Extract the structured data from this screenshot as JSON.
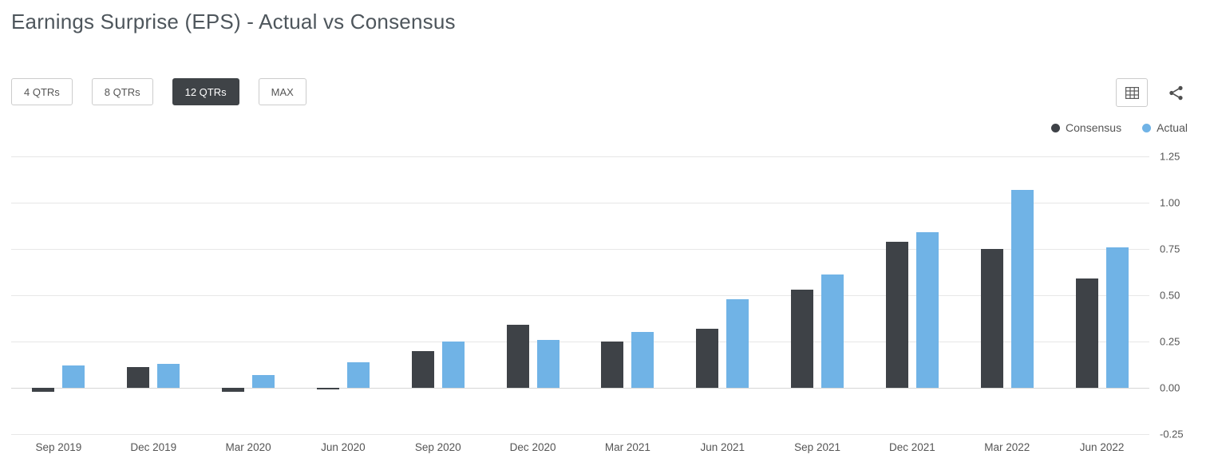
{
  "header": {
    "title": "Earnings Surprise (EPS) - Actual vs Consensus"
  },
  "toolbar": {
    "buttons": [
      {
        "label": "4 QTRs",
        "active": false
      },
      {
        "label": "8 QTRs",
        "active": false
      },
      {
        "label": "12 QTRs",
        "active": true
      },
      {
        "label": "MAX",
        "active": false
      }
    ],
    "icons": [
      {
        "name": "table-icon"
      },
      {
        "name": "share-icon"
      }
    ]
  },
  "colors": {
    "consensus": "#3e4247",
    "actual": "#70b3e6",
    "active_button_bg": "#3f4347",
    "grid": "#e7e7e7"
  },
  "chart_data": {
    "type": "bar",
    "title": "Earnings Surprise (EPS) - Actual vs Consensus",
    "categories": [
      "Sep 2019",
      "Dec 2019",
      "Mar 2020",
      "Jun 2020",
      "Sep 2020",
      "Dec 2020",
      "Mar 2021",
      "Jun 2021",
      "Sep 2021",
      "Dec 2021",
      "Mar 2022",
      "Jun 2022"
    ],
    "series": [
      {
        "name": "Consensus",
        "color": "#3e4247",
        "values": [
          -0.02,
          0.11,
          -0.02,
          -0.01,
          0.2,
          0.34,
          0.25,
          0.32,
          0.53,
          0.79,
          0.75,
          0.59
        ]
      },
      {
        "name": "Actual",
        "color": "#70b3e6",
        "values": [
          0.12,
          0.13,
          0.07,
          0.14,
          0.25,
          0.26,
          0.3,
          0.48,
          0.61,
          0.84,
          1.07,
          0.76
        ]
      }
    ],
    "xlabel": "",
    "ylabel": "",
    "ylim": [
      -0.25,
      1.25
    ],
    "yticks": [
      "1.25",
      "1.00",
      "0.75",
      "0.50",
      "0.25",
      "0.00",
      "-0.25"
    ],
    "grid": true,
    "legend_position": "top-right"
  }
}
